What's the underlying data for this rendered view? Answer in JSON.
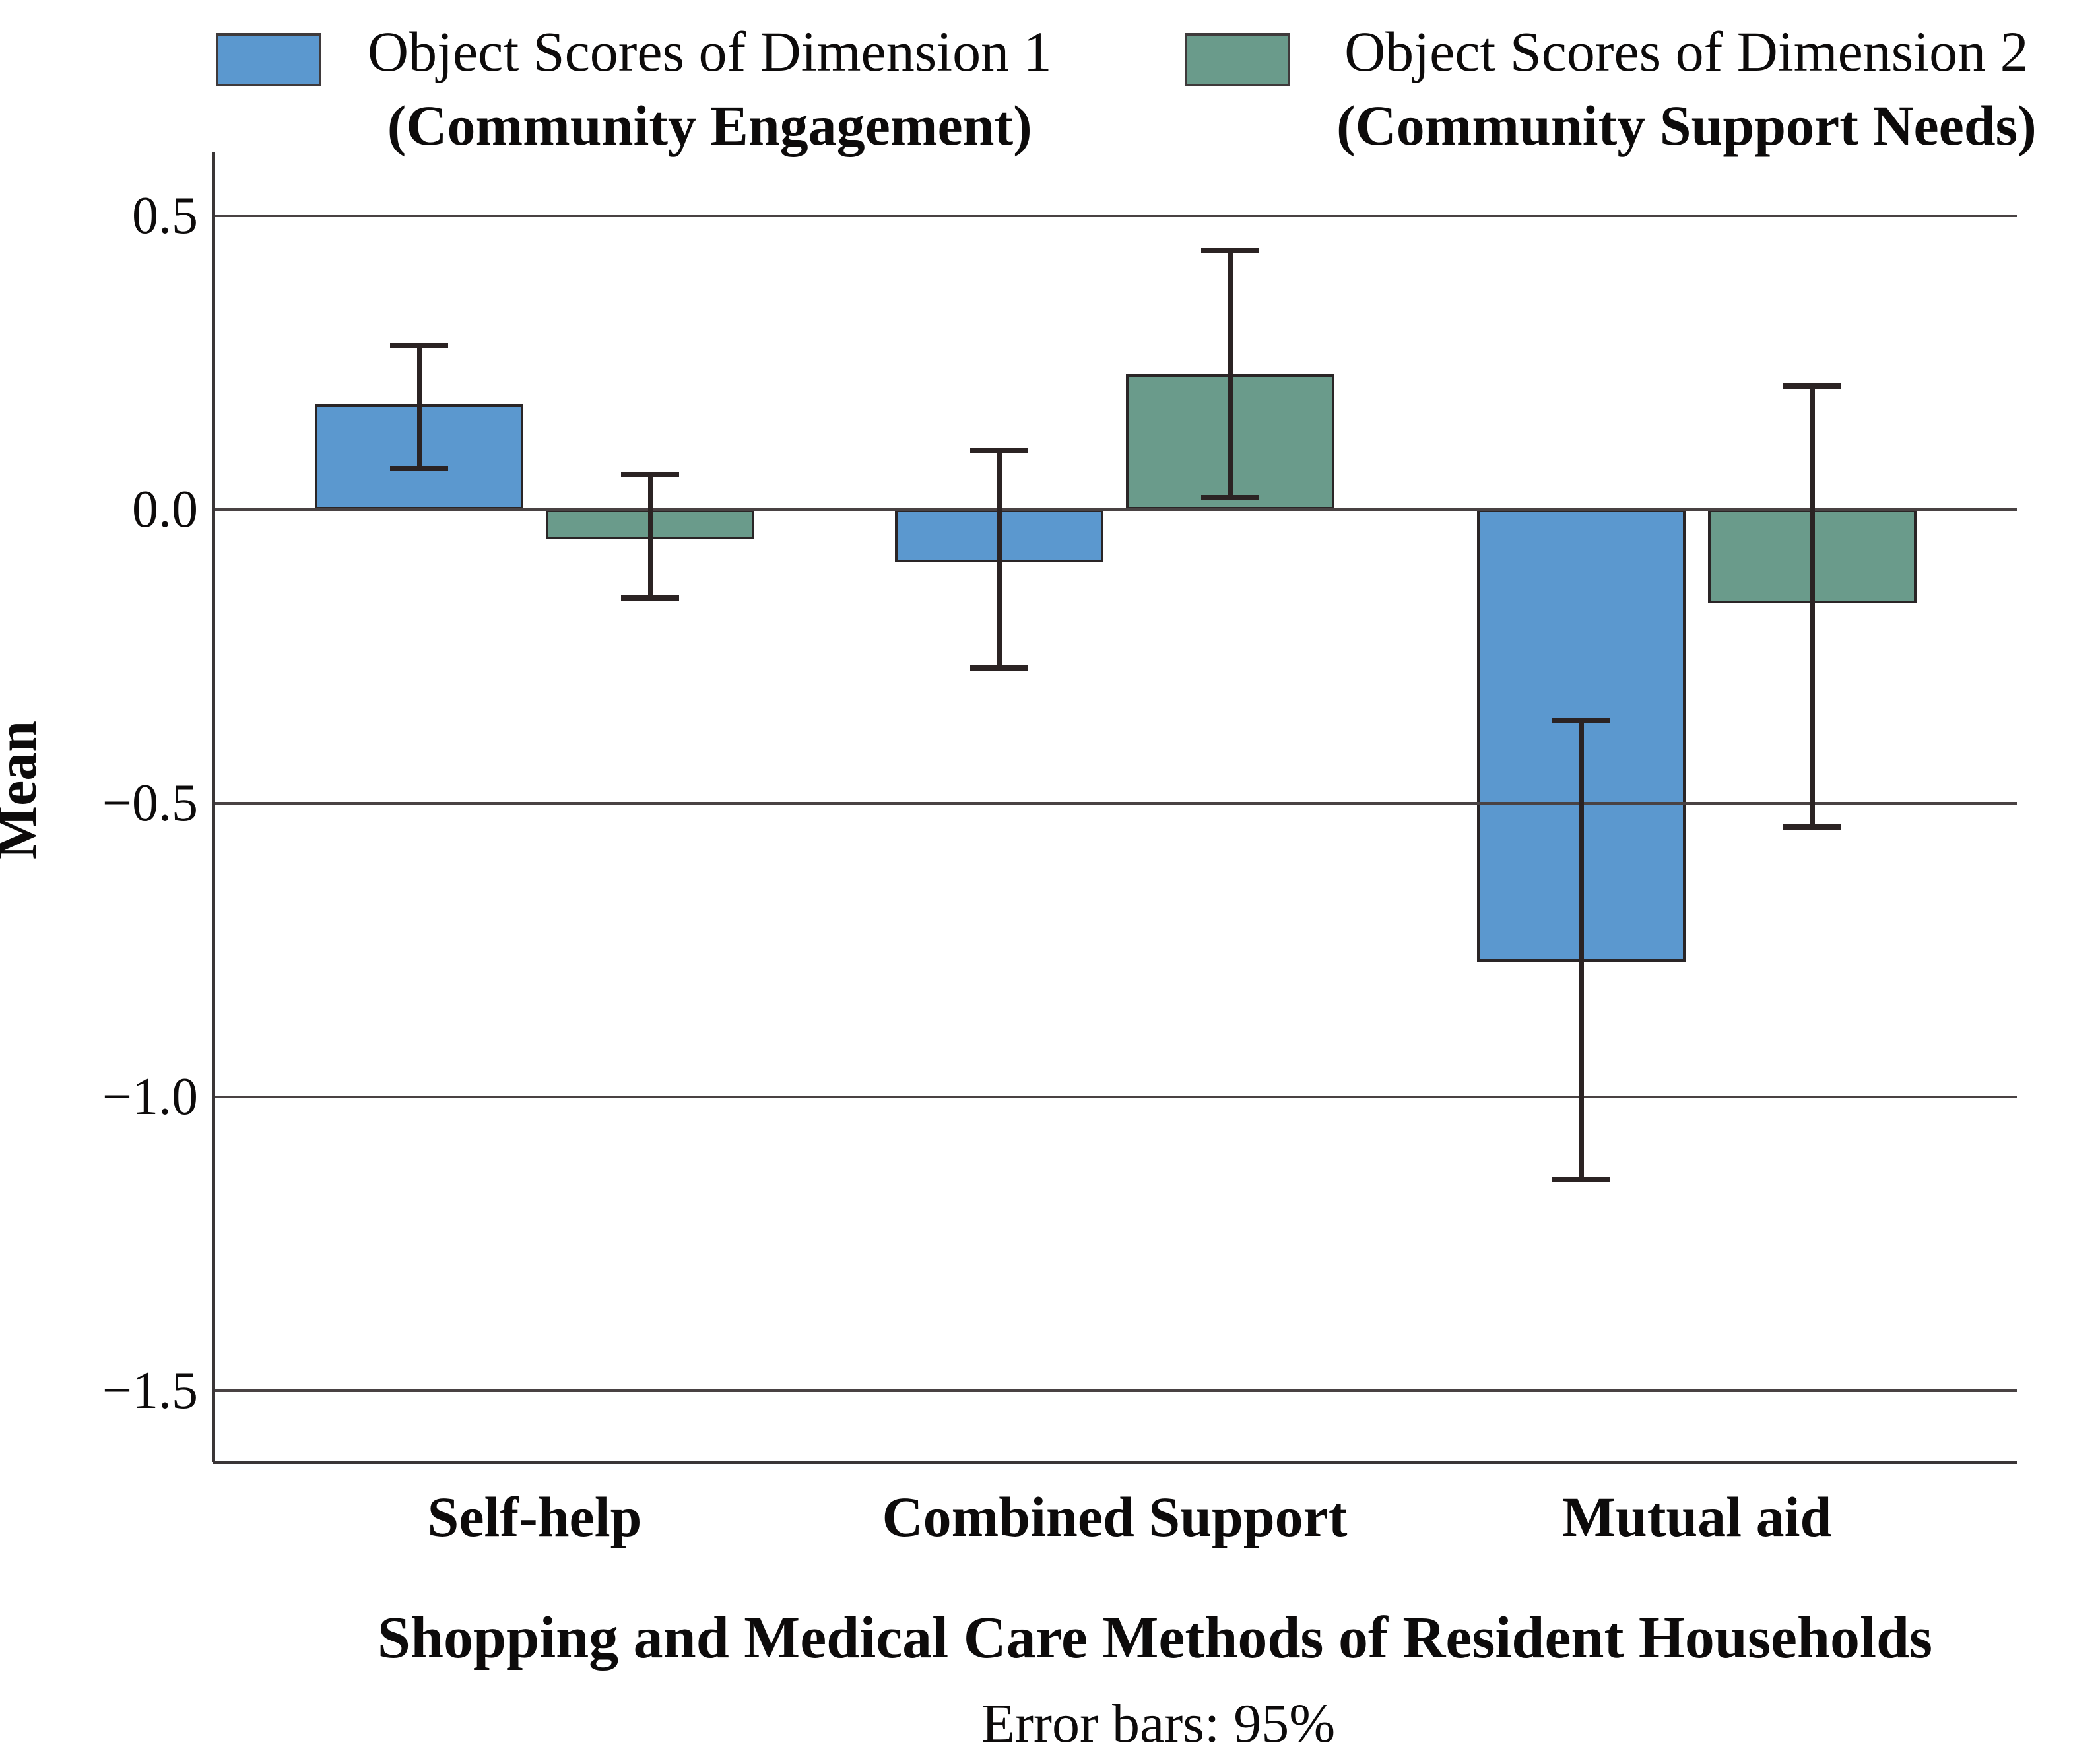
{
  "page": {
    "background": "#ffffff"
  },
  "legend": {
    "items": [
      {
        "label": "Object Scores of Dimension 1",
        "sublabel": "(Community Engagement)",
        "color": "#5b98cf"
      },
      {
        "label": "Object Scores of Dimension 2",
        "sublabel": "(Community Support Needs)",
        "color": "#6a9b8b"
      }
    ]
  },
  "axes": {
    "ylabel": "Mean",
    "xlabel": "Shopping and Medical Care Methods of Resident Households",
    "footnote": "Error bars: 95%"
  },
  "chart_data": {
    "type": "bar",
    "title": "",
    "categories": [
      "Self-help",
      "Combined Support",
      "Mutual aid"
    ],
    "series": [
      {
        "name": "Object Scores of Dimension 1 (Community Engagement)",
        "color": "#5b98cf",
        "values": [
          0.18,
          -0.09,
          -0.77
        ],
        "ci_low": [
          0.07,
          -0.27,
          -1.14
        ],
        "ci_high": [
          0.28,
          0.1,
          -0.36
        ]
      },
      {
        "name": "Object Scores of Dimension 2 (Community Support Needs)",
        "color": "#6a9b8b",
        "values": [
          -0.05,
          0.23,
          -0.16
        ],
        "ci_low": [
          -0.15,
          0.02,
          -0.54
        ],
        "ci_high": [
          0.06,
          0.44,
          0.21
        ]
      }
    ],
    "xlabel": "Shopping and Medical Care Methods of Resident Households",
    "ylabel": "Mean",
    "footnote": "Error bars: 95%",
    "error_bars": "95%",
    "yticks": [
      0.5,
      0.0,
      -0.5,
      -1.0,
      -1.5
    ],
    "ytick_labels": [
      "0.5",
      "0.0",
      "−0.5",
      "−1.0",
      "−1.5"
    ],
    "ylim": [
      -1.62,
      0.61
    ],
    "grid": true,
    "legend_position": "top",
    "bar_edge_color": "#2a2526",
    "errorbar_color": "#2b2323",
    "gridline_color": "#494243"
  }
}
